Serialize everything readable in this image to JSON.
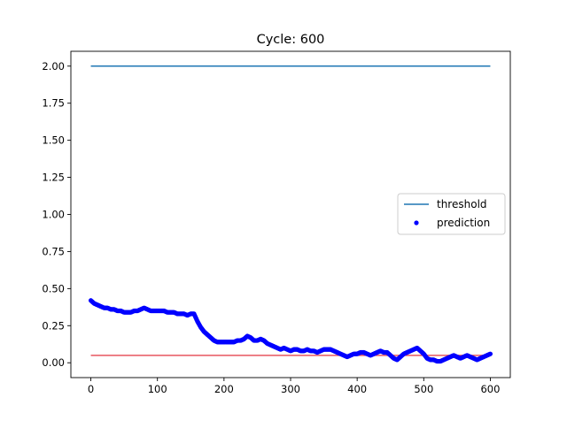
{
  "chart_data": {
    "type": "scatter",
    "title": "Cycle: 600",
    "xlabel": "",
    "ylabel": "",
    "xlim": [
      -30,
      630
    ],
    "ylim": [
      -0.1,
      2.1
    ],
    "x_ticks": [
      0,
      100,
      200,
      300,
      400,
      500,
      600
    ],
    "y_ticks": [
      0.0,
      0.25,
      0.5,
      0.75,
      1.0,
      1.25,
      1.5,
      1.75,
      2.0
    ],
    "x_tick_labels": [
      "0",
      "100",
      "200",
      "300",
      "400",
      "500",
      "600"
    ],
    "y_tick_labels": [
      "0.00",
      "0.25",
      "0.50",
      "0.75",
      "1.00",
      "1.25",
      "1.50",
      "1.75",
      "2.00"
    ],
    "grid": false,
    "legend_position": "center-right",
    "legend": [
      {
        "label": "threshold",
        "kind": "line",
        "color": "#1f77b4"
      },
      {
        "label": "prediction",
        "kind": "point",
        "color": "#0000ff"
      }
    ],
    "lines": [
      {
        "name": "threshold",
        "color": "#1f77b4",
        "x": [
          0,
          600
        ],
        "y": [
          2.0,
          2.0
        ]
      },
      {
        "name": "",
        "color": "#e8565f",
        "x": [
          0,
          600
        ],
        "y": [
          0.05,
          0.05
        ]
      }
    ],
    "series": [
      {
        "name": "prediction",
        "color": "#0000ff",
        "x": [
          0,
          5,
          10,
          15,
          20,
          25,
          30,
          35,
          40,
          45,
          50,
          55,
          60,
          65,
          70,
          75,
          80,
          85,
          90,
          95,
          100,
          105,
          110,
          115,
          120,
          125,
          130,
          135,
          140,
          145,
          150,
          155,
          160,
          165,
          170,
          175,
          180,
          185,
          190,
          195,
          200,
          205,
          210,
          215,
          220,
          225,
          230,
          235,
          240,
          245,
          250,
          255,
          260,
          265,
          270,
          275,
          280,
          285,
          290,
          295,
          300,
          305,
          310,
          315,
          320,
          325,
          330,
          335,
          340,
          345,
          350,
          355,
          360,
          365,
          370,
          375,
          380,
          385,
          390,
          395,
          400,
          405,
          410,
          415,
          420,
          425,
          430,
          435,
          440,
          445,
          450,
          455,
          460,
          465,
          470,
          475,
          480,
          485,
          490,
          495,
          500,
          505,
          510,
          515,
          520,
          525,
          530,
          535,
          540,
          545,
          550,
          555,
          560,
          565,
          570,
          575,
          580,
          585,
          590,
          595,
          600
        ],
        "y": [
          0.42,
          0.4,
          0.39,
          0.38,
          0.37,
          0.37,
          0.36,
          0.36,
          0.35,
          0.35,
          0.34,
          0.34,
          0.34,
          0.35,
          0.35,
          0.36,
          0.37,
          0.36,
          0.35,
          0.35,
          0.35,
          0.35,
          0.35,
          0.34,
          0.34,
          0.34,
          0.33,
          0.33,
          0.33,
          0.32,
          0.33,
          0.33,
          0.28,
          0.24,
          0.21,
          0.19,
          0.17,
          0.15,
          0.14,
          0.14,
          0.14,
          0.14,
          0.14,
          0.14,
          0.15,
          0.15,
          0.16,
          0.18,
          0.17,
          0.15,
          0.15,
          0.16,
          0.15,
          0.13,
          0.12,
          0.11,
          0.1,
          0.09,
          0.1,
          0.09,
          0.08,
          0.09,
          0.09,
          0.08,
          0.08,
          0.09,
          0.08,
          0.08,
          0.07,
          0.08,
          0.09,
          0.09,
          0.09,
          0.08,
          0.07,
          0.06,
          0.05,
          0.04,
          0.05,
          0.06,
          0.06,
          0.07,
          0.07,
          0.06,
          0.05,
          0.06,
          0.07,
          0.08,
          0.07,
          0.07,
          0.05,
          0.03,
          0.02,
          0.04,
          0.06,
          0.07,
          0.08,
          0.09,
          0.1,
          0.08,
          0.06,
          0.03,
          0.02,
          0.02,
          0.01,
          0.01,
          0.02,
          0.03,
          0.04,
          0.05,
          0.04,
          0.03,
          0.04,
          0.05,
          0.04,
          0.03,
          0.02,
          0.03,
          0.04,
          0.05,
          0.06
        ]
      }
    ]
  }
}
